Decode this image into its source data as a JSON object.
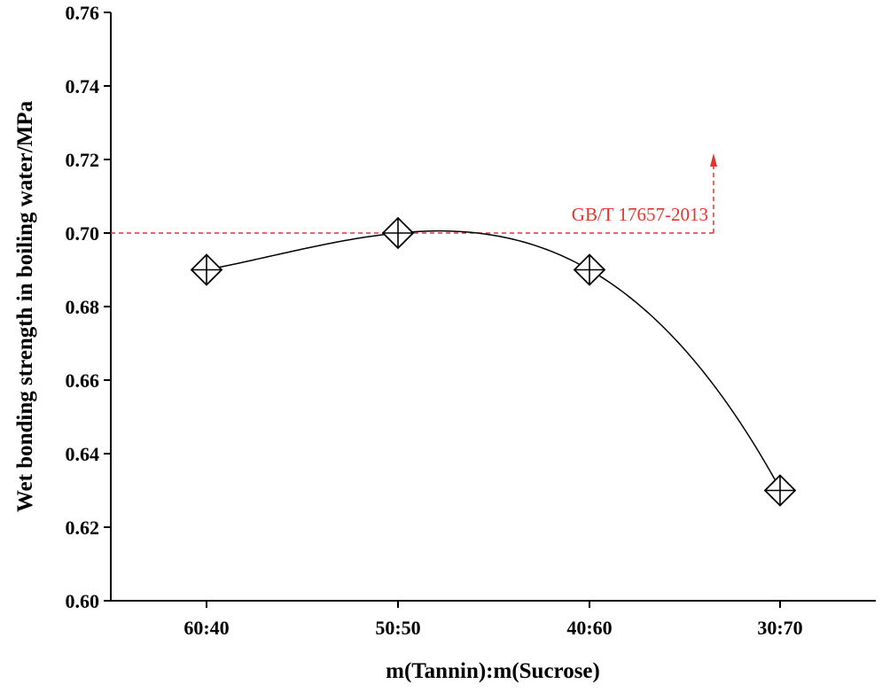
{
  "chart_data": {
    "type": "scatter",
    "title": "",
    "xlabel": "m(Tannin):m(Sucrose)",
    "ylabel": "Wet bonding strength in boiling water/MPa",
    "categories": [
      "60:40",
      "50:50",
      "40:60",
      "30:70"
    ],
    "series": [
      {
        "values": [
          0.69,
          0.7,
          0.69,
          0.63
        ],
        "marker": "diamond-cross",
        "fit_curve": true
      }
    ],
    "ylim": [
      0.6,
      0.76
    ],
    "yticks": [
      "0.60",
      "0.62",
      "0.64",
      "0.66",
      "0.68",
      "0.70",
      "0.72",
      "0.74",
      "0.76"
    ],
    "grid": false,
    "reference_line": {
      "value": 0.7,
      "label": "GB/T 17657-2013",
      "color": "#e8322a",
      "style": "dashed",
      "arrow": "up"
    },
    "colors": {
      "axis": "#000000",
      "series": "#000000",
      "reference": "#e8322a"
    }
  }
}
